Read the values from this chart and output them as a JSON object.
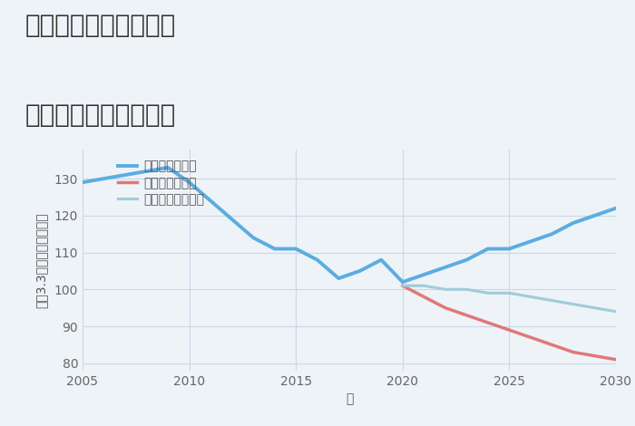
{
  "title_line1": "奈良県学研北生駒駅の",
  "title_line2": "中古戸建ての価格推移",
  "xlabel": "年",
  "ylabel": "坪（3.3㎡）単価（万円）",
  "xlim": [
    2005,
    2030
  ],
  "ylim": [
    78,
    138
  ],
  "yticks": [
    80,
    90,
    100,
    110,
    120,
    130
  ],
  "xticks": [
    2005,
    2010,
    2015,
    2020,
    2025,
    2030
  ],
  "bg_color": "#eef3f8",
  "plot_bg_color": "#eef3f8",
  "grid_color": "#c8d8e8",
  "good_scenario": {
    "label": "グッドシナリオ",
    "color": "#5aade0",
    "linewidth": 2.8,
    "x": [
      2005,
      2006,
      2007,
      2008,
      2009,
      2010,
      2011,
      2012,
      2013,
      2014,
      2015,
      2016,
      2017,
      2018,
      2019,
      2020,
      2021,
      2022,
      2023,
      2024,
      2025,
      2026,
      2027,
      2028,
      2029,
      2030
    ],
    "y": [
      129,
      130,
      131,
      132,
      133,
      129,
      124,
      119,
      114,
      111,
      111,
      108,
      103,
      105,
      108,
      102,
      104,
      106,
      108,
      111,
      111,
      113,
      115,
      118,
      120,
      122
    ]
  },
  "bad_scenario": {
    "label": "バッドシナリオ",
    "color": "#e07878",
    "linewidth": 2.5,
    "x": [
      2020,
      2021,
      2022,
      2023,
      2024,
      2025,
      2026,
      2027,
      2028,
      2029,
      2030
    ],
    "y": [
      101,
      98,
      95,
      93,
      91,
      89,
      87,
      85,
      83,
      82,
      81
    ]
  },
  "normal_scenario": {
    "label": "ノーマルシナリオ",
    "color": "#a0ccd8",
    "linewidth": 2.2,
    "x": [
      2020,
      2021,
      2022,
      2023,
      2024,
      2025,
      2026,
      2027,
      2028,
      2029,
      2030
    ],
    "y": [
      101,
      101,
      100,
      100,
      99,
      99,
      98,
      97,
      96,
      95,
      94
    ]
  },
  "title_color": "#333333",
  "title_fontsize": 20,
  "axis_label_fontsize": 10,
  "tick_fontsize": 10,
  "legend_fontsize": 10
}
